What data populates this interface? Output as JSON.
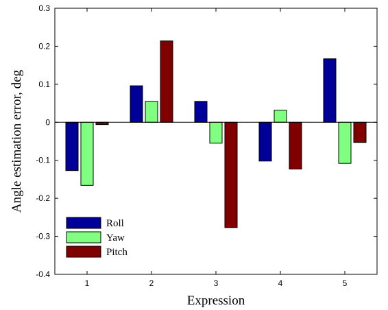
{
  "chart_data": {
    "type": "bar",
    "title": "",
    "xlabel": "Expression",
    "ylabel": "Angle estimation error, deg",
    "categories": [
      "1",
      "2",
      "3",
      "4",
      "5"
    ],
    "series": [
      {
        "name": "Roll",
        "values": [
          -0.127,
          0.096,
          0.055,
          -0.102,
          0.167
        ],
        "color": "#000099"
      },
      {
        "name": "Yaw",
        "values": [
          -0.166,
          0.055,
          -0.055,
          0.032,
          -0.108
        ],
        "color": "#80ff80"
      },
      {
        "name": "Pitch",
        "values": [
          -0.006,
          0.214,
          -0.277,
          -0.123,
          -0.053
        ],
        "color": "#800000"
      }
    ],
    "ylim": [
      -0.4,
      0.3
    ],
    "yticks": [
      "-0.4",
      "-0.3",
      "-0.2",
      "-0.1",
      "0",
      "0.1",
      "0.2",
      "0.3"
    ],
    "grid": false,
    "legend_position": "bottom-left"
  }
}
